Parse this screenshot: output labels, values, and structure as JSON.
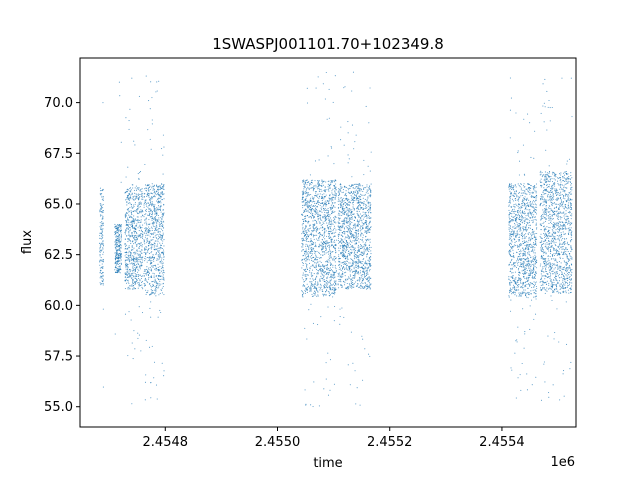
{
  "chart_data": {
    "type": "scatter",
    "title": "1SWASPJ001101.70+102349.8",
    "xlabel": "time",
    "ylabel": "flux",
    "x_offset_label": "1e6",
    "x_ticks": [
      {
        "value": 2454800,
        "label": "2.4548"
      },
      {
        "value": 2455000,
        "label": "2.4550"
      },
      {
        "value": 2455200,
        "label": "2.4552"
      },
      {
        "value": 2455400,
        "label": "2.4554"
      }
    ],
    "y_ticks": [
      {
        "value": 55.0,
        "label": "55.0"
      },
      {
        "value": 57.5,
        "label": "57.5"
      },
      {
        "value": 60.0,
        "label": "60.0"
      },
      {
        "value": 62.5,
        "label": "62.5"
      },
      {
        "value": 65.0,
        "label": "65.0"
      },
      {
        "value": 67.5,
        "label": "67.5"
      },
      {
        "value": 70.0,
        "label": "70.0"
      }
    ],
    "xlim": [
      2454648,
      2455532
    ],
    "ylim": [
      54.0,
      72.2
    ],
    "grid": false,
    "marker_color": "#1f77b4",
    "observing_seasons": [
      {
        "x_start": 2454683,
        "x_end": 2454690,
        "y_low": 61.0,
        "y_high": 65.8
      },
      {
        "x_start": 2454710,
        "x_end": 2454722,
        "y_low": 61.6,
        "y_high": 64.0
      },
      {
        "x_start": 2454728,
        "x_end": 2454760,
        "y_low": 60.8,
        "y_high": 65.8
      },
      {
        "x_start": 2454762,
        "x_end": 2454798,
        "y_low": 60.5,
        "y_high": 66.0
      },
      {
        "x_start": 2455043,
        "x_end": 2455105,
        "y_low": 60.4,
        "y_high": 66.2
      },
      {
        "x_start": 2455108,
        "x_end": 2455167,
        "y_low": 60.8,
        "y_high": 66.0
      },
      {
        "x_start": 2455412,
        "x_end": 2455462,
        "y_low": 60.4,
        "y_high": 66.0
      },
      {
        "x_start": 2455468,
        "x_end": 2455525,
        "y_low": 60.6,
        "y_high": 66.6
      }
    ],
    "outlier_range": [
      55.0,
      71.5
    ]
  }
}
